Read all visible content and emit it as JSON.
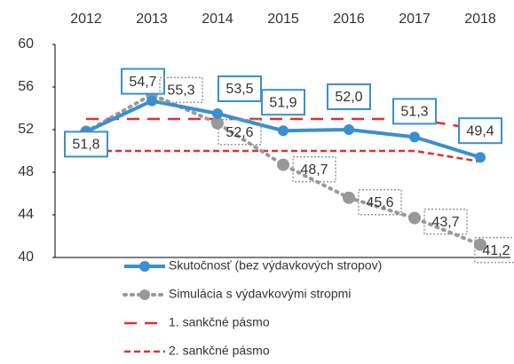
{
  "chart_data": {
    "type": "line",
    "categories": [
      "2012",
      "2013",
      "2014",
      "2015",
      "2016",
      "2017",
      "2018"
    ],
    "ylim": [
      40,
      60
    ],
    "yticks": [
      40,
      44,
      48,
      52,
      56,
      60
    ],
    "grid": false,
    "legend": "bottom",
    "series": [
      {
        "name": "Skutočnosť (bez výdavkových stropov)",
        "color": "#3a8fd0",
        "style": "solid",
        "marker": true,
        "values": [
          51.8,
          54.7,
          53.5,
          51.9,
          52.0,
          51.3,
          49.4
        ],
        "value_labels": [
          "51,8",
          "54,7",
          "53,5",
          "51,9",
          "52,0",
          "51,3",
          "49,4"
        ]
      },
      {
        "name": "Simulácia s výdavkovými stropmi",
        "color": "#999999",
        "style": "dotted",
        "marker": true,
        "values": [
          51.8,
          55.3,
          52.6,
          48.7,
          45.6,
          43.7,
          41.2
        ],
        "value_labels": [
          null,
          "55,3",
          "52,6",
          "48,7",
          "45,6",
          "43,7",
          "41,2"
        ]
      },
      {
        "name": "1. sankčné pásmo",
        "color": "#e03030",
        "style": "dashed",
        "marker": false,
        "values": [
          53,
          53,
          53,
          53,
          53,
          53,
          52
        ]
      },
      {
        "name": "2. sankčné pásmo",
        "color": "#e03030",
        "style": "dashed-fine",
        "marker": false,
        "values": [
          50,
          50,
          50,
          50,
          50,
          50,
          49
        ]
      }
    ]
  }
}
